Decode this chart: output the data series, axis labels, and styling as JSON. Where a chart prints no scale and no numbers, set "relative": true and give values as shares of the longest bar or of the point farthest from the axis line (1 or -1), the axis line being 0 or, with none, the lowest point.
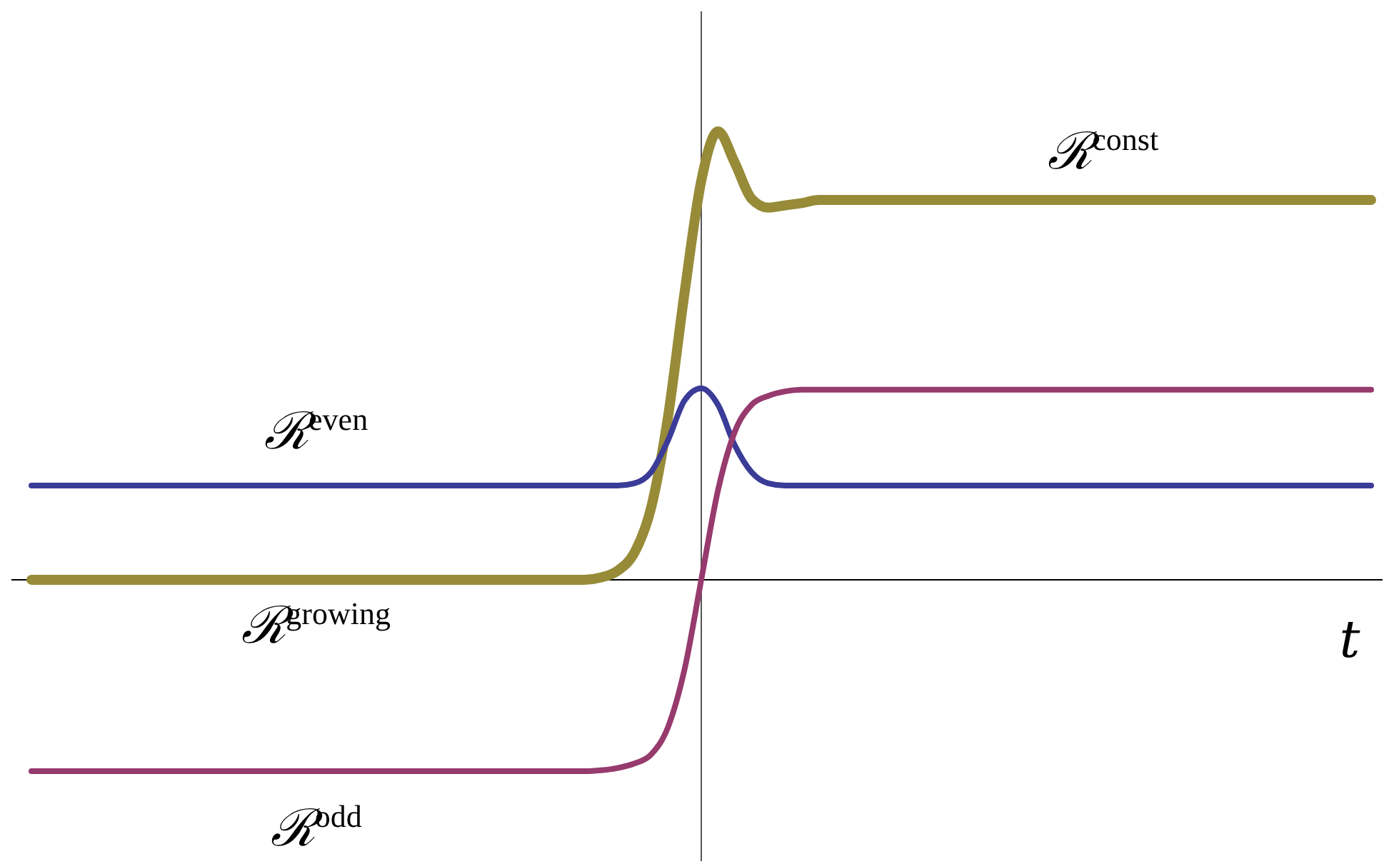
{
  "chart_data": {
    "type": "line",
    "relative": true,
    "xlabel": "t",
    "categories": [
      null,
      null,
      null,
      null,
      null,
      null,
      null,
      null,
      null,
      null,
      null,
      null,
      null,
      null,
      null,
      null,
      null,
      null,
      null,
      null,
      null,
      null,
      null,
      null,
      null,
      null,
      null,
      null,
      null,
      null,
      null,
      null,
      null,
      null,
      null,
      null,
      null,
      null,
      null,
      null,
      null,
      null,
      null,
      null,
      null,
      null,
      null,
      null,
      null,
      null,
      null,
      null,
      null,
      null,
      null,
      null,
      null,
      null,
      null,
      null,
      null,
      null,
      null,
      null,
      null,
      null,
      null,
      null,
      null,
      null,
      null,
      null,
      null,
      null,
      null,
      null,
      null,
      null,
      null,
      null,
      null
    ],
    "series": [
      {
        "name": "ℛ$^{const}$",
        "color": "#978b38",
        "values": [
          0,
          0,
          0,
          0,
          0,
          0,
          0,
          0,
          0,
          0,
          0,
          0,
          0,
          0,
          0,
          0,
          0,
          0,
          0,
          0,
          0,
          0,
          0,
          0,
          0,
          0,
          0,
          0,
          0,
          0,
          0,
          0,
          0,
          0,
          0.005,
          0.02,
          0.06,
          0.16,
          0.36,
          0.64,
          0.89,
          1.0,
          0.93,
          0.85,
          0.83,
          0.835,
          0.84,
          0.847,
          0.847,
          0.847,
          0.847,
          0.847,
          0.847,
          0.847,
          0.847,
          0.847,
          0.847,
          0.847,
          0.847,
          0.847,
          0.847,
          0.847,
          0.847,
          0.847,
          0.847,
          0.847,
          0.847,
          0.847,
          0.847,
          0.847,
          0.847,
          0.847,
          0.847,
          0.847,
          0.847,
          0.847,
          0.847,
          0.847,
          0.847,
          0.847,
          0.847
        ]
      },
      {
        "name": "ℛ$^{even}$",
        "color": "#3b3b98",
        "values": [
          0.21,
          0.21,
          0.21,
          0.21,
          0.21,
          0.21,
          0.21,
          0.21,
          0.21,
          0.21,
          0.21,
          0.21,
          0.21,
          0.21,
          0.21,
          0.21,
          0.21,
          0.21,
          0.21,
          0.21,
          0.21,
          0.21,
          0.21,
          0.21,
          0.21,
          0.21,
          0.21,
          0.21,
          0.21,
          0.21,
          0.21,
          0.21,
          0.21,
          0.21,
          0.21,
          0.21,
          0.215,
          0.24,
          0.31,
          0.4,
          0.427,
          0.39,
          0.3,
          0.24,
          0.215,
          0.21,
          0.21,
          0.21,
          0.21,
          0.21,
          0.21,
          0.21,
          0.21,
          0.21,
          0.21,
          0.21,
          0.21,
          0.21,
          0.21,
          0.21,
          0.21,
          0.21,
          0.21,
          0.21,
          0.21,
          0.21,
          0.21,
          0.21,
          0.21,
          0.21,
          0.21,
          0.21,
          0.21,
          0.21,
          0.21,
          0.21,
          0.21,
          0.21,
          0.21,
          0.21,
          0.21
        ]
      },
      {
        "name": "ℛ$^{odd}$",
        "color": "#973a6d",
        "values": [
          -0.427,
          -0.427,
          -0.427,
          -0.427,
          -0.427,
          -0.427,
          -0.427,
          -0.427,
          -0.427,
          -0.427,
          -0.427,
          -0.427,
          -0.427,
          -0.427,
          -0.427,
          -0.427,
          -0.427,
          -0.427,
          -0.427,
          -0.427,
          -0.427,
          -0.427,
          -0.427,
          -0.427,
          -0.427,
          -0.427,
          -0.427,
          -0.427,
          -0.427,
          -0.427,
          -0.427,
          -0.427,
          -0.427,
          -0.427,
          -0.425,
          -0.42,
          -0.41,
          -0.39,
          -0.33,
          -0.2,
          0.0,
          0.2,
          0.33,
          0.39,
          0.41,
          0.42,
          0.424,
          0.424,
          0.424,
          0.424,
          0.424,
          0.424,
          0.424,
          0.424,
          0.424,
          0.424,
          0.424,
          0.424,
          0.424,
          0.424,
          0.424,
          0.424,
          0.424,
          0.424,
          0.424,
          0.424,
          0.424,
          0.424,
          0.424,
          0.424,
          0.424,
          0.424,
          0.424,
          0.424,
          0.424,
          0.424,
          0.424,
          0.424,
          0.424,
          0.424,
          0.424
        ]
      }
    ],
    "annotations": [
      "ℛ$^{growing}$"
    ]
  }
}
